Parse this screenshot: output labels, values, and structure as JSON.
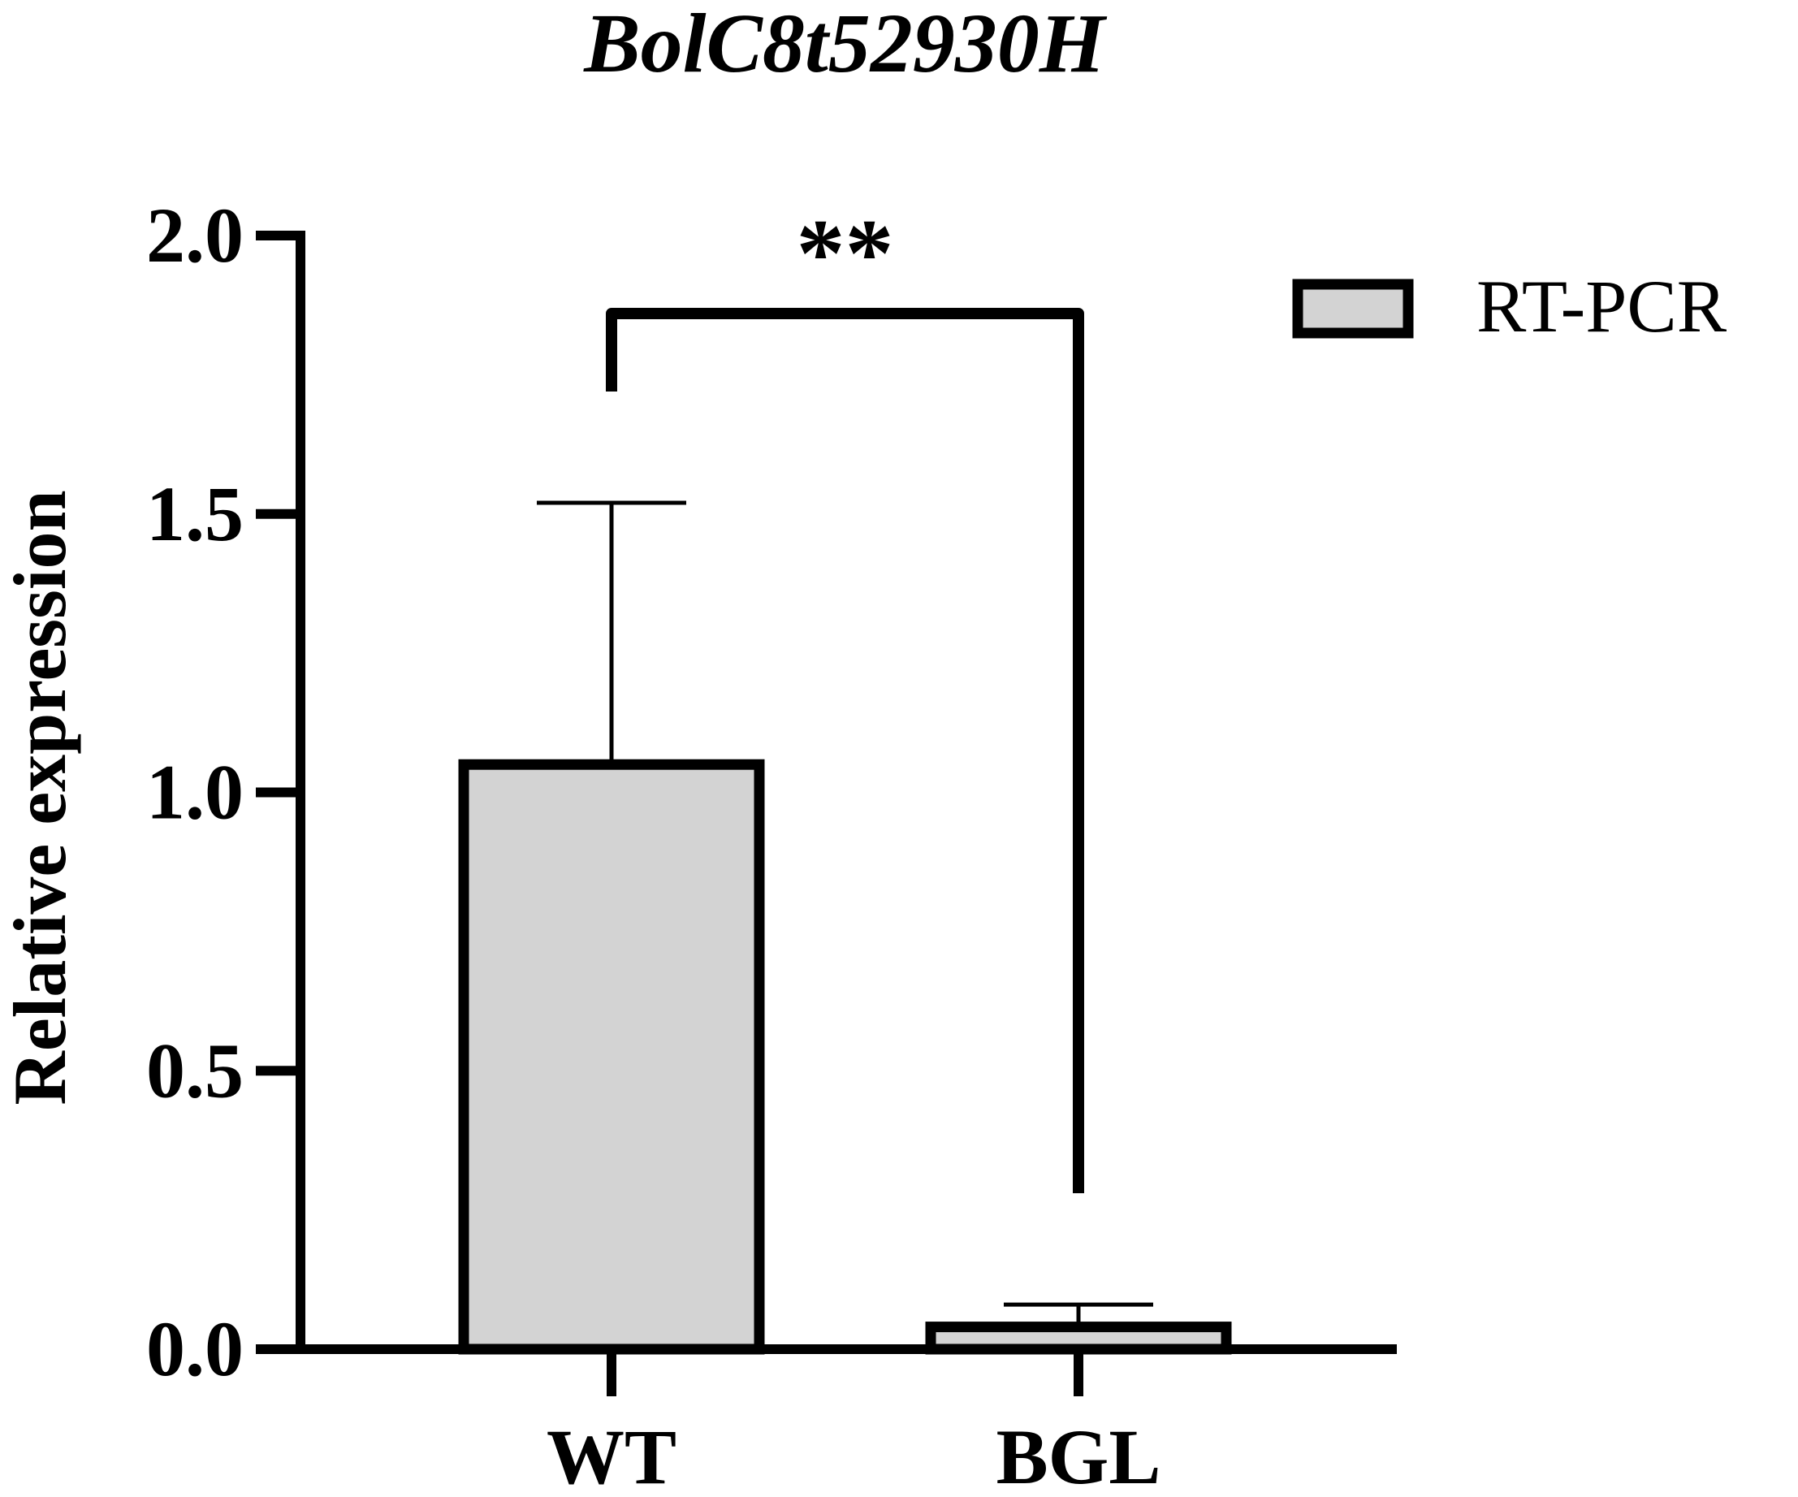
{
  "chart_data": {
    "type": "bar",
    "title": "BolC8t52930H",
    "ylabel": "Relative expression",
    "xlabel": "",
    "categories": [
      "WT",
      "BGL"
    ],
    "series": [
      {
        "name": "RT-PCR",
        "values": [
          1.05,
          0.04
        ],
        "errors": [
          0.47,
          0.04
        ],
        "color": "#d3d3d3"
      }
    ],
    "ylim": [
      0,
      2.0
    ],
    "yticks": [
      "0.0",
      "0.5",
      "1.0",
      "1.5",
      "2.0"
    ],
    "significance": {
      "label": "**",
      "between": [
        "WT",
        "BGL"
      ]
    },
    "legend": {
      "position": "top-right",
      "entries": [
        "RT-PCR"
      ]
    },
    "grid": false
  }
}
